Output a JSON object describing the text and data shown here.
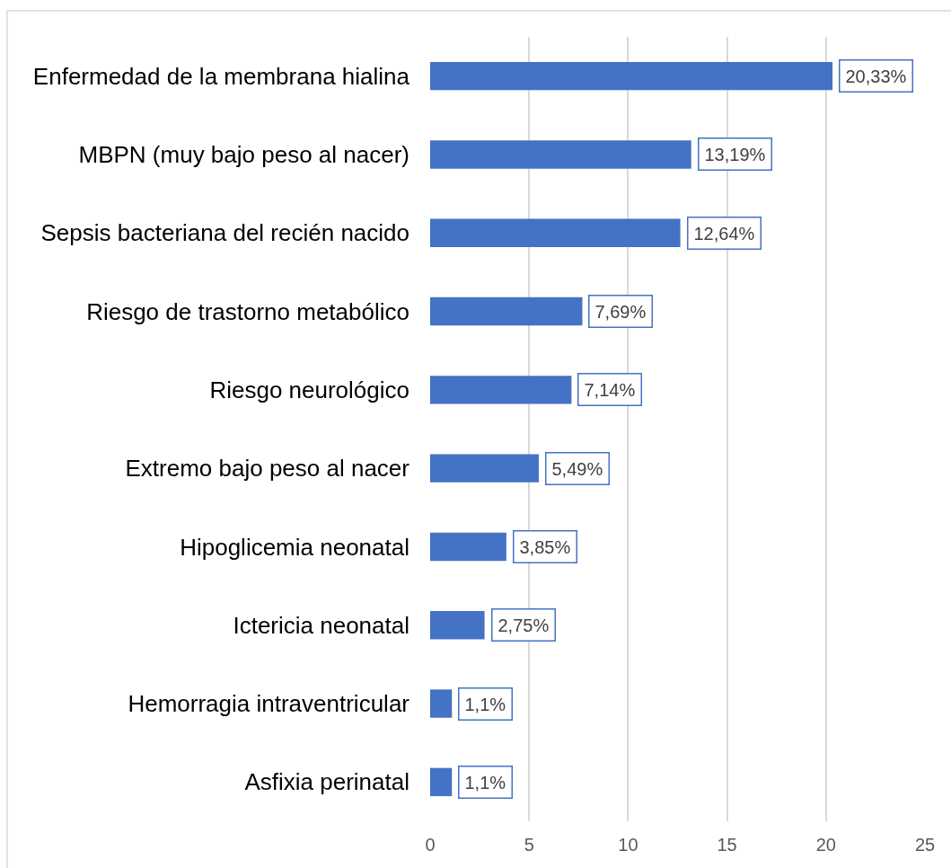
{
  "chart_data": {
    "type": "bar",
    "orientation": "horizontal",
    "categories": [
      "Enfermedad de la membrana hialina",
      "MBPN (muy bajo peso al nacer)",
      "Sepsis bacteriana del recién nacido",
      "Riesgo de trastorno metabólico",
      "Riesgo neurológico",
      "Extremo bajo peso al nacer",
      "Hipoglicemia neonatal",
      "Ictericia neonatal",
      "Hemorragia intraventricular",
      "Asfixia perinatal"
    ],
    "values": [
      20.33,
      13.19,
      12.64,
      7.69,
      7.14,
      5.49,
      3.85,
      2.75,
      1.1,
      1.1
    ],
    "value_labels": [
      "20,33%",
      "13,19%",
      "12,64%",
      "7,69%",
      "7,14%",
      "5,49%",
      "3,85%",
      "2,75%",
      "1,1%",
      "1,1%"
    ],
    "color": "#4472c4",
    "xlim": [
      0,
      25
    ],
    "xticks": [
      0,
      5,
      10,
      15,
      20,
      25
    ],
    "grid": "x"
  }
}
